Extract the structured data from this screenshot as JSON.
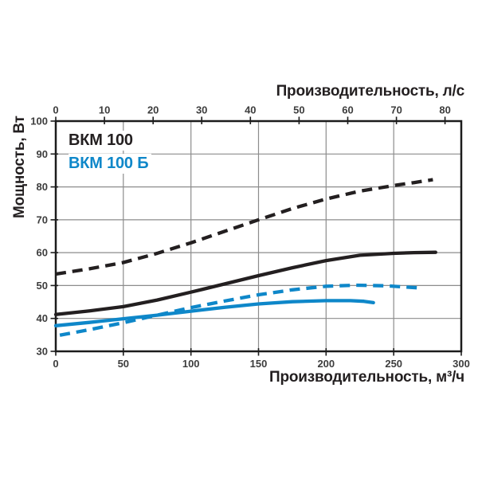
{
  "page": {
    "background": "#ffffff"
  },
  "chart_data": {
    "type": "line",
    "title": "",
    "legend": [
      {
        "id": "vkm100",
        "label": "ВКМ 100",
        "color": "#231f20"
      },
      {
        "id": "vkm100b",
        "label": "ВКМ 100 Б",
        "color": "#0e87c9"
      }
    ],
    "axes": {
      "x_top": {
        "label": "Производительность, л/с",
        "min": 0,
        "max": 83.33,
        "ticks": [
          0,
          10,
          20,
          30,
          40,
          50,
          60,
          70,
          80
        ],
        "unit_factor_to_bottom": 3.6
      },
      "x_bottom": {
        "label": "Производительность, м³/ч",
        "min": 0,
        "max": 300,
        "ticks": [
          0,
          50,
          100,
          150,
          200,
          250,
          300
        ]
      },
      "y": {
        "label": "Мощность, Вт",
        "min": 30,
        "max": 100,
        "ticks": [
          30,
          40,
          50,
          60,
          70,
          80,
          90,
          100
        ]
      }
    },
    "grid": {
      "on": true,
      "color": "#8c8c8c",
      "x_values": [
        50,
        100,
        150,
        200,
        250
      ],
      "y_values": [
        40,
        50,
        60,
        70,
        80,
        90
      ]
    },
    "border_color": "#1c1c1c",
    "series": [
      {
        "id": "vkm100-dashed",
        "name": "ВКМ 100",
        "color": "#231f20",
        "style": "dashed",
        "points": [
          [
            0,
            53.5
          ],
          [
            25,
            55.1
          ],
          [
            50,
            57.0
          ],
          [
            75,
            59.8
          ],
          [
            100,
            63.0
          ],
          [
            125,
            66.5
          ],
          [
            150,
            70.0
          ],
          [
            175,
            73.4
          ],
          [
            200,
            76.3
          ],
          [
            225,
            78.7
          ],
          [
            250,
            80.4
          ],
          [
            265,
            81.3
          ],
          [
            279,
            82.2
          ]
        ]
      },
      {
        "id": "vkm100-solid",
        "name": "ВКМ 100",
        "color": "#231f20",
        "style": "solid",
        "points": [
          [
            0,
            41.2
          ],
          [
            25,
            42.3
          ],
          [
            50,
            43.6
          ],
          [
            75,
            45.6
          ],
          [
            100,
            48.0
          ],
          [
            125,
            50.5
          ],
          [
            150,
            53.0
          ],
          [
            175,
            55.4
          ],
          [
            200,
            57.6
          ],
          [
            225,
            59.2
          ],
          [
            250,
            59.8
          ],
          [
            265,
            60.0
          ],
          [
            281,
            60.1
          ]
        ]
      },
      {
        "id": "vkm100b-dashed",
        "name": "ВКМ 100 Б",
        "color": "#0e87c9",
        "style": "dashed",
        "points": [
          [
            3,
            34.9
          ],
          [
            25,
            36.6
          ],
          [
            50,
            38.7
          ],
          [
            75,
            41.0
          ],
          [
            100,
            43.3
          ],
          [
            125,
            45.3
          ],
          [
            150,
            47.2
          ],
          [
            175,
            48.7
          ],
          [
            200,
            49.8
          ],
          [
            222,
            50.1
          ],
          [
            245,
            49.9
          ],
          [
            268,
            49.3
          ]
        ]
      },
      {
        "id": "vkm100b-solid",
        "name": "ВКМ 100 Б",
        "color": "#0e87c9",
        "style": "solid",
        "points": [
          [
            0,
            37.8
          ],
          [
            25,
            38.8
          ],
          [
            50,
            39.9
          ],
          [
            75,
            41.0
          ],
          [
            100,
            42.2
          ],
          [
            125,
            43.4
          ],
          [
            150,
            44.4
          ],
          [
            175,
            45.1
          ],
          [
            200,
            45.4
          ],
          [
            218,
            45.4
          ],
          [
            228,
            45.2
          ],
          [
            235,
            44.8
          ]
        ]
      }
    ]
  }
}
